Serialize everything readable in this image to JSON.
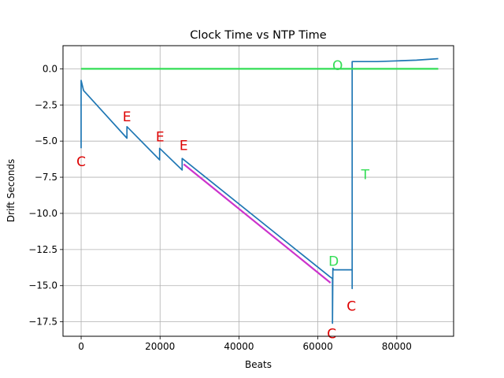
{
  "chart_data": {
    "type": "line",
    "title": "Clock Time vs NTP Time",
    "xlabel": "Beats",
    "ylabel": "Drift Seconds",
    "xlim": [
      -4600,
      94400
    ],
    "ylim": [
      -18.5,
      1.6
    ],
    "xticks": [
      0,
      20000,
      40000,
      60000,
      80000
    ],
    "xtick_labels": [
      "0",
      "20000",
      "40000",
      "60000",
      "80000"
    ],
    "yticks": [
      0,
      -2.5,
      -5,
      -7.5,
      -10,
      -12.5,
      -15,
      -17.5
    ],
    "ytick_labels": [
      "0.0",
      "−2.5",
      "−5.0",
      "−7.5",
      "−10.0",
      "−12.5",
      "−15.0",
      "−17.5"
    ],
    "grid": true,
    "legend": "none",
    "series": [
      {
        "color": "#1f77b4",
        "x": [
          0,
          0,
          0,
          600,
          11600,
          11600,
          19900,
          19900,
          25600,
          25600,
          63100,
          63700,
          63700,
          63800,
          64000,
          63800,
          68700,
          68700,
          68700,
          68700,
          69000,
          75000,
          80000,
          85000,
          90500
        ],
        "y": [
          -5.5,
          -0.8,
          -0.8,
          -1.5,
          -4.8,
          -4.0,
          -6.3,
          -5.5,
          -7.0,
          -6.2,
          -14.4,
          -14.5,
          -17.6,
          -13.8,
          -13.9,
          -13.9,
          -13.9,
          -15.2,
          -15.2,
          0.5,
          0.5,
          0.5,
          0.55,
          0.6,
          0.7
        ]
      },
      {
        "color": "#cc33cc",
        "x": [
          26000,
          63200
        ],
        "y": [
          -6.6,
          -14.8
        ]
      },
      {
        "color": "#33dd55",
        "x": [
          0,
          90500
        ],
        "y": [
          0,
          0
        ]
      }
    ],
    "annotations": [
      {
        "text": "C",
        "x": 0,
        "y": -6.4,
        "color": "#dd0000"
      },
      {
        "text": "E",
        "x": 11600,
        "y": -3.3,
        "color": "#dd0000"
      },
      {
        "text": "E",
        "x": 20000,
        "y": -4.7,
        "color": "#dd0000"
      },
      {
        "text": "E",
        "x": 26000,
        "y": -5.3,
        "color": "#dd0000"
      },
      {
        "text": "D",
        "x": 64000,
        "y": -13.3,
        "color": "#33dd55"
      },
      {
        "text": "C",
        "x": 63500,
        "y": -18.3,
        "color": "#dd0000"
      },
      {
        "text": "C",
        "x": 68500,
        "y": -16.4,
        "color": "#dd0000"
      },
      {
        "text": "O",
        "x": 65000,
        "y": 0.25,
        "color": "#33dd55"
      },
      {
        "text": "T",
        "x": 72000,
        "y": -7.3,
        "color": "#33dd55"
      }
    ]
  }
}
